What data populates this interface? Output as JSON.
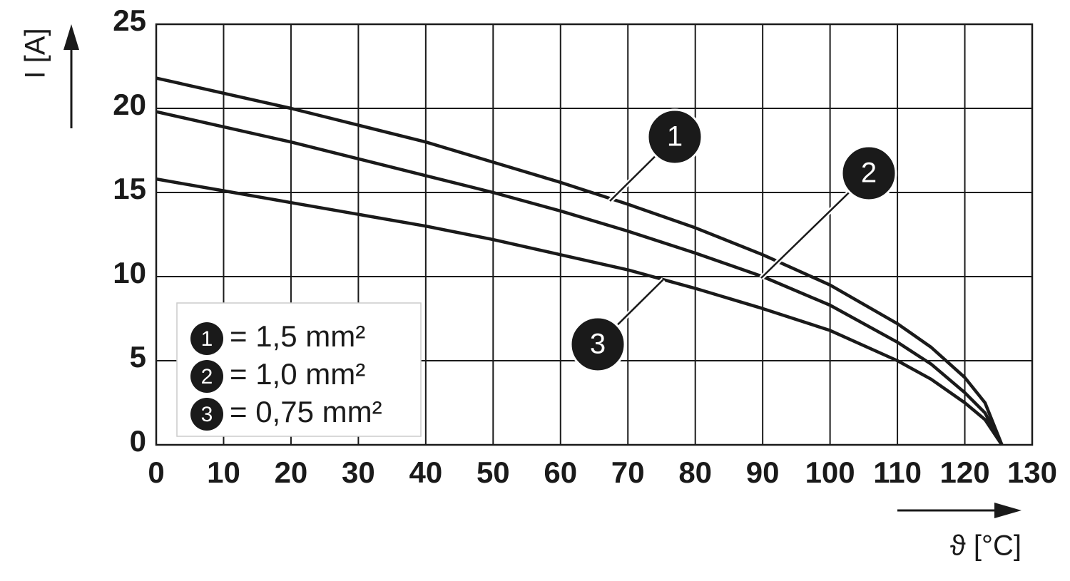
{
  "chart_data": {
    "type": "line",
    "y_label": "I [A]",
    "x_label": "ϑ [°C]",
    "x": [
      0,
      10,
      20,
      30,
      40,
      50,
      60,
      70,
      80,
      90,
      100,
      110,
      115,
      120,
      123,
      125.5
    ],
    "series": [
      {
        "name": "= 1,5 mm²",
        "marker": "1",
        "color": "#1a1a1a",
        "values": [
          21.8,
          20.9,
          20.0,
          19.0,
          18.0,
          16.8,
          15.6,
          14.3,
          12.9,
          11.3,
          9.5,
          7.2,
          5.8,
          4.0,
          2.5,
          0
        ]
      },
      {
        "name": "= 1,0 mm²",
        "marker": "2",
        "color": "#1a1a1a",
        "values": [
          19.8,
          18.9,
          18.0,
          17.0,
          16.0,
          15.0,
          13.9,
          12.7,
          11.4,
          10.0,
          8.3,
          6.1,
          4.8,
          3.1,
          1.9,
          0
        ]
      },
      {
        "name": "= 0,75 mm²",
        "marker": "3",
        "color": "#1a1a1a",
        "values": [
          15.8,
          15.1,
          14.4,
          13.7,
          13.0,
          12.2,
          11.3,
          10.4,
          9.3,
          8.1,
          6.8,
          5.0,
          3.9,
          2.5,
          1.5,
          0
        ]
      }
    ],
    "xlim": [
      0,
      130
    ],
    "xticks": [
      0,
      10,
      20,
      30,
      40,
      50,
      60,
      70,
      80,
      90,
      100,
      110,
      120,
      130
    ],
    "ylim": [
      0,
      25
    ],
    "yticks": [
      0,
      5,
      10,
      15,
      20,
      25
    ],
    "grid": true,
    "legend": "lower left"
  }
}
